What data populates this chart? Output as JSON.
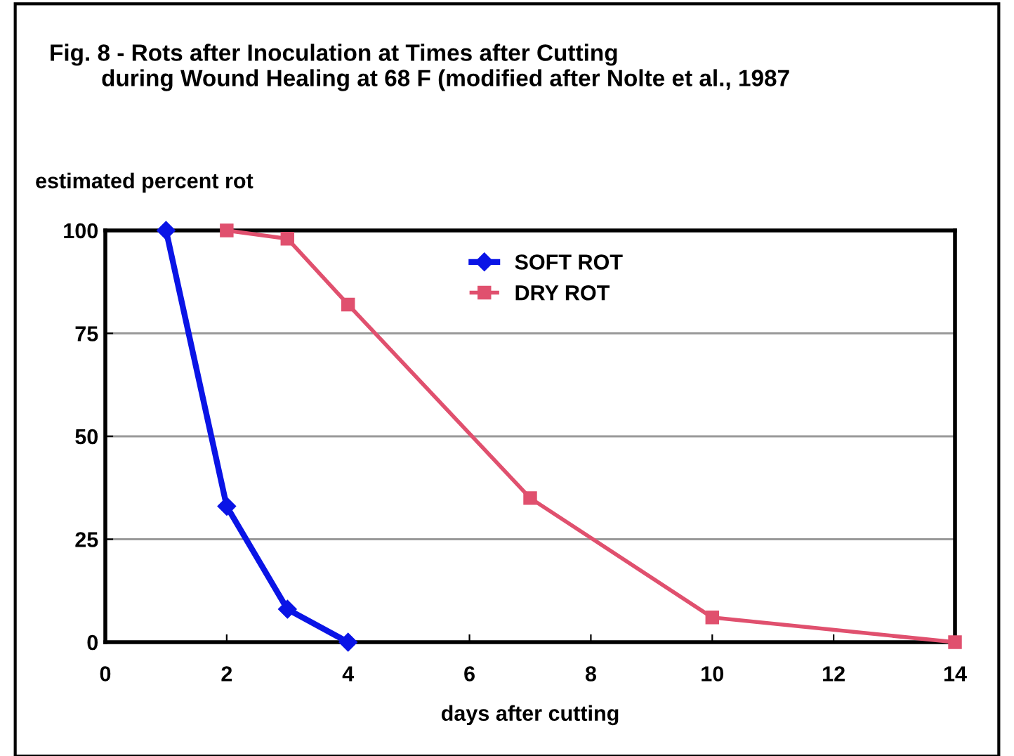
{
  "chart_data": {
    "type": "line",
    "title": "Fig. 8 - Rots after Inoculation at Times after Cutting\n        during Wound Healing at 68 F (modified after Nolte et al., 1987",
    "ylabel": "estimated percent rot",
    "xlabel": "days after cutting",
    "series": [
      {
        "name": "SOFT ROT",
        "color": "#0a14e6",
        "marker": "diamond",
        "x": [
          1,
          2,
          3,
          4
        ],
        "values": [
          100,
          33,
          8,
          0
        ]
      },
      {
        "name": "DRY ROT",
        "color": "#e0506e",
        "marker": "square",
        "x": [
          2,
          3,
          4,
          7,
          10,
          14
        ],
        "values": [
          100,
          98,
          82,
          35,
          6,
          0
        ]
      }
    ],
    "xlim": [
      0,
      14
    ],
    "xticks": [
      0,
      2,
      4,
      6,
      8,
      10,
      12,
      14
    ],
    "ylim": [
      0,
      100
    ],
    "yticks": [
      0,
      25,
      50,
      75,
      100
    ],
    "grid": "y",
    "legend": "top"
  }
}
